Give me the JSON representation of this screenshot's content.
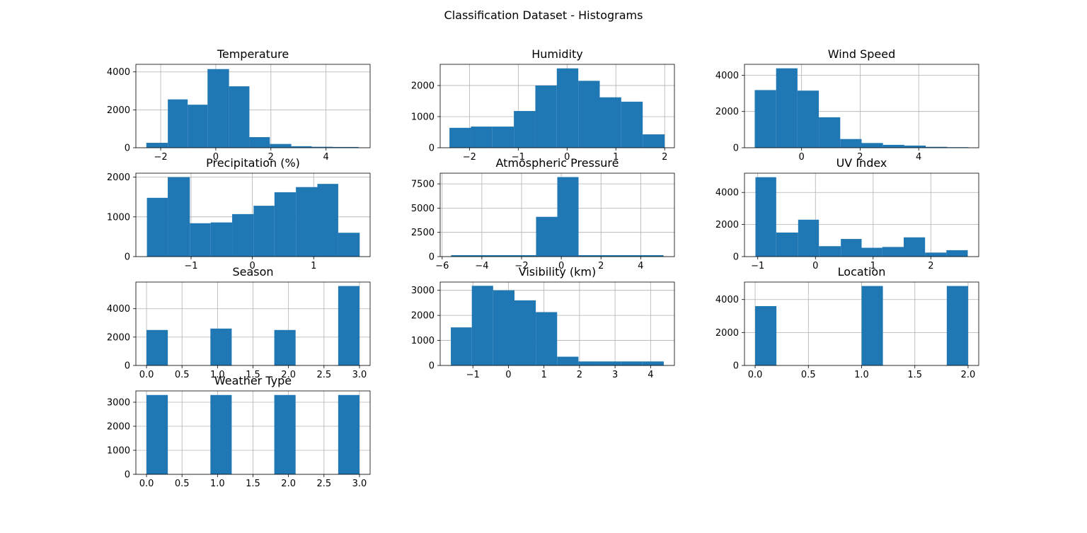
{
  "figure": {
    "title": "Classification Dataset - Histograms",
    "bar_color": "#1f77b4",
    "grid_color": "#b0b0b0"
  },
  "chart_data": [
    {
      "type": "bar",
      "title": "Temperature",
      "bins": [
        [
          -2.52,
          -1.74
        ],
        [
          -1.74,
          -1.02
        ],
        [
          -1.02,
          -0.3
        ],
        [
          -0.3,
          0.48
        ],
        [
          0.48,
          1.22
        ],
        [
          1.22,
          1.96
        ],
        [
          1.96,
          2.74
        ],
        [
          2.74,
          3.48
        ],
        [
          3.48,
          4.24
        ],
        [
          4.24,
          5.18
        ]
      ],
      "values": [
        260,
        2550,
        2270,
        4150,
        3240,
        560,
        200,
        80,
        50,
        40
      ],
      "xlim": [
        -2.9,
        5.6
      ],
      "ylim": [
        0,
        4400
      ],
      "xticks": [
        -2,
        0,
        2,
        4
      ],
      "yticks": [
        0,
        2000,
        4000
      ]
    },
    {
      "type": "bar",
      "title": "Humidity",
      "bins": [
        [
          -2.41,
          -1.97
        ],
        [
          -1.97,
          -1.53
        ],
        [
          -1.53,
          -1.09
        ],
        [
          -1.09,
          -0.65
        ],
        [
          -0.65,
          -0.21
        ],
        [
          -0.21,
          0.23
        ],
        [
          0.23,
          0.67
        ],
        [
          0.67,
          1.11
        ],
        [
          1.11,
          1.55
        ],
        [
          1.55,
          2.0
        ]
      ],
      "values": [
        640,
        680,
        680,
        1180,
        2000,
        2550,
        2150,
        1620,
        1480,
        430
      ],
      "xlim": [
        -2.6,
        2.2
      ],
      "ylim": [
        0,
        2680
      ],
      "xticks": [
        -2,
        -1,
        0,
        1,
        2
      ],
      "yticks": [
        0,
        1000,
        2000
      ]
    },
    {
      "type": "bar",
      "title": "Wind Speed",
      "bins": [
        [
          -1.6,
          -0.87
        ],
        [
          -0.87,
          -0.14
        ],
        [
          -0.14,
          0.59
        ],
        [
          0.59,
          1.32
        ],
        [
          1.32,
          2.05
        ],
        [
          2.05,
          2.78
        ],
        [
          2.78,
          3.51
        ],
        [
          3.51,
          4.24
        ],
        [
          4.24,
          4.97
        ],
        [
          4.97,
          5.7
        ]
      ],
      "values": [
        3180,
        4380,
        3150,
        1680,
        480,
        260,
        160,
        120,
        50,
        30
      ],
      "xlim": [
        -1.95,
        6.05
      ],
      "ylim": [
        0,
        4600
      ],
      "xticks": [
        0,
        2,
        4
      ],
      "yticks": [
        0,
        2000,
        4000
      ]
    },
    {
      "type": "bar",
      "title": "Precipitation (%)",
      "bins": [
        [
          -1.72,
          -1.38
        ],
        [
          -1.38,
          -1.02
        ],
        [
          -1.02,
          -0.68
        ],
        [
          -0.68,
          -0.33
        ],
        [
          -0.33,
          0.02
        ],
        [
          0.02,
          0.36
        ],
        [
          0.36,
          0.71
        ],
        [
          0.71,
          1.06
        ],
        [
          1.06,
          1.4
        ],
        [
          1.4,
          1.75
        ]
      ],
      "values": [
        1480,
        2000,
        840,
        860,
        1070,
        1280,
        1620,
        1750,
        1830,
        600
      ],
      "xlim": [
        -1.9,
        1.92
      ],
      "ylim": [
        0,
        2100
      ],
      "xticks": [
        -1,
        0,
        1
      ],
      "yticks": [
        0,
        1000,
        2000
      ]
    },
    {
      "type": "bar",
      "title": "Atmospheric Pressure",
      "bins": [
        [
          -5.55,
          -4.48
        ],
        [
          -4.48,
          -3.41
        ],
        [
          -3.41,
          -2.34
        ],
        [
          -2.34,
          -1.27
        ],
        [
          -1.27,
          -0.2
        ],
        [
          -0.2,
          0.87
        ],
        [
          0.87,
          1.94
        ],
        [
          1.94,
          3.01
        ],
        [
          3.01,
          4.08
        ],
        [
          4.08,
          5.15
        ]
      ],
      "values": [
        150,
        150,
        150,
        150,
        4100,
        8200,
        150,
        150,
        150,
        150
      ],
      "xlim": [
        -6.1,
        5.7
      ],
      "ylim": [
        0,
        8600
      ],
      "xticks": [
        -6,
        -4,
        -2,
        0,
        2,
        4
      ],
      "yticks": [
        0,
        2500,
        5000,
        7500
      ]
    },
    {
      "type": "bar",
      "title": "UV Index",
      "bins": [
        [
          -1.04,
          -0.68
        ],
        [
          -0.68,
          -0.3
        ],
        [
          -0.3,
          0.06
        ],
        [
          0.06,
          0.44
        ],
        [
          0.44,
          0.8
        ],
        [
          0.8,
          1.16
        ],
        [
          1.16,
          1.53
        ],
        [
          1.53,
          1.9
        ],
        [
          1.9,
          2.27
        ],
        [
          2.27,
          2.64
        ]
      ],
      "values": [
        4950,
        1500,
        2300,
        650,
        1100,
        550,
        600,
        1200,
        250,
        400
      ],
      "xlim": [
        -1.23,
        2.83
      ],
      "ylim": [
        0,
        5200
      ],
      "xticks": [
        -1,
        0,
        1,
        2
      ],
      "yticks": [
        0,
        2000,
        4000
      ]
    },
    {
      "type": "bar",
      "title": "Season",
      "bins": [
        [
          0.0,
          0.3
        ],
        [
          0.9,
          1.2
        ],
        [
          1.8,
          2.1
        ],
        [
          2.7,
          3.0
        ]
      ],
      "values": [
        2500,
        2600,
        2500,
        5600
      ],
      "xlim": [
        -0.15,
        3.15
      ],
      "ylim": [
        0,
        5880
      ],
      "xticks": [
        0.0,
        0.5,
        1.0,
        1.5,
        2.0,
        2.5,
        3.0
      ],
      "yticks": [
        0,
        2000,
        4000
      ]
    },
    {
      "type": "bar",
      "title": "Visibility (km)",
      "bins": [
        [
          -1.62,
          -1.03
        ],
        [
          -1.03,
          -0.43
        ],
        [
          -0.43,
          0.17
        ],
        [
          0.17,
          0.77
        ],
        [
          0.77,
          1.37
        ],
        [
          1.37,
          1.97
        ],
        [
          1.97,
          2.57
        ],
        [
          2.57,
          3.17
        ],
        [
          3.17,
          3.77
        ],
        [
          3.77,
          4.37
        ]
      ],
      "values": [
        1520,
        3180,
        3000,
        2600,
        2130,
        350,
        160,
        160,
        160,
        160
      ],
      "xlim": [
        -1.92,
        4.67
      ],
      "ylim": [
        0,
        3330
      ],
      "xticks": [
        -1,
        0,
        1,
        2,
        3,
        4
      ],
      "yticks": [
        0,
        1000,
        2000,
        3000
      ]
    },
    {
      "type": "bar",
      "title": "Location",
      "bins": [
        [
          0.0,
          0.2
        ],
        [
          1.0,
          1.2
        ],
        [
          1.8,
          2.0
        ]
      ],
      "values": [
        3600,
        4820,
        4820
      ],
      "xlim": [
        -0.1,
        2.1
      ],
      "ylim": [
        0,
        5060
      ],
      "xticks": [
        0.0,
        0.5,
        1.0,
        1.5,
        2.0
      ],
      "yticks": [
        0,
        2000,
        4000
      ]
    },
    {
      "type": "bar",
      "title": "Weather Type",
      "bins": [
        [
          0.0,
          0.3
        ],
        [
          0.9,
          1.2
        ],
        [
          1.8,
          2.1
        ],
        [
          2.7,
          3.0
        ]
      ],
      "values": [
        3300,
        3300,
        3300,
        3300
      ],
      "xlim": [
        -0.15,
        3.15
      ],
      "ylim": [
        0,
        3470
      ],
      "xticks": [
        0.0,
        0.5,
        1.0,
        1.5,
        2.0,
        2.5,
        3.0
      ],
      "yticks": [
        0,
        1000,
        2000,
        3000
      ]
    }
  ]
}
